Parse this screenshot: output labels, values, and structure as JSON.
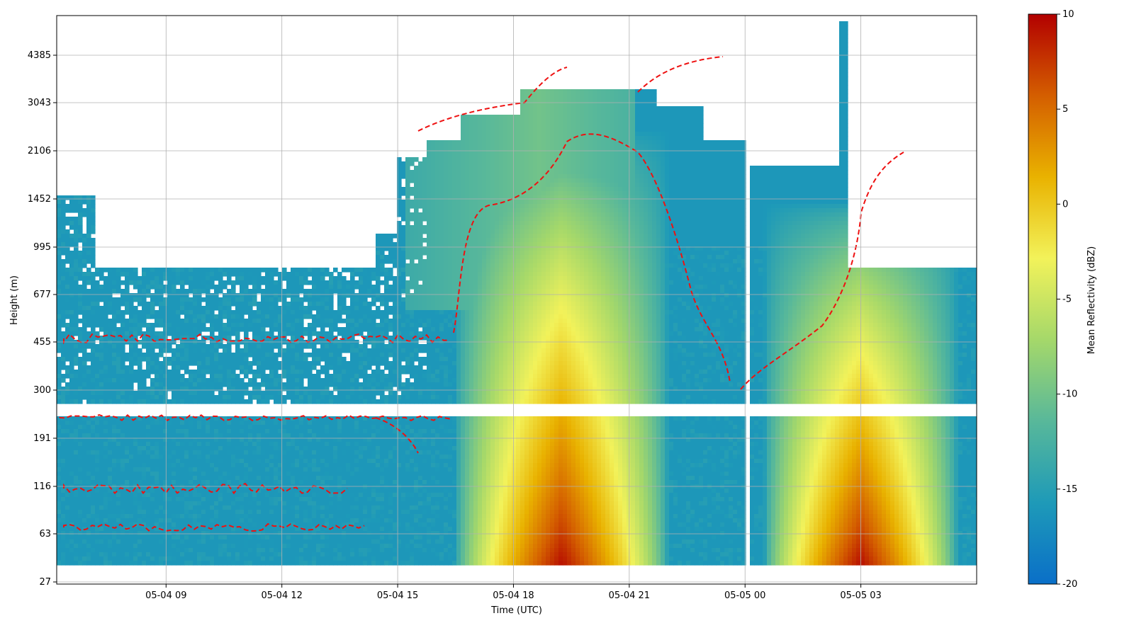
{
  "chart_data": {
    "type": "heatmap",
    "title": "",
    "xlabel": "Time (UTC)",
    "ylabel": "Height (m)",
    "x_range": [
      "2024-05-04 06:10",
      "2024-05-05 06:00"
    ],
    "y_ticks": [
      27,
      63,
      116,
      191,
      300,
      455,
      677,
      995,
      1452,
      2106,
      3043,
      4385
    ],
    "x_ticks": [
      {
        "time": "2024-05-04 09:00",
        "label": "05-04 09"
      },
      {
        "time": "2024-05-04 12:00",
        "label": "05-04 12"
      },
      {
        "time": "2024-05-04 15:00",
        "label": "05-04 15"
      },
      {
        "time": "2024-05-04 18:00",
        "label": "05-04 18"
      },
      {
        "time": "2024-05-04 21:00",
        "label": "05-04 21"
      },
      {
        "time": "2024-05-05 00:00",
        "label": "05-05 00"
      },
      {
        "time": "2024-05-05 03:00",
        "label": "05-05 03"
      }
    ],
    "grid": true,
    "colorbar": {
      "label": "Mean Reflectivity (dBZ)",
      "range": [
        -20,
        10
      ],
      "ticks": [
        10,
        5,
        0,
        -5,
        -10,
        -15,
        -20
      ],
      "colors": [
        "#0a6fc8",
        "#1e9ab8",
        "#58b89a",
        "#a5d86a",
        "#f2f25a",
        "#e9b200",
        "#d45e00",
        "#b20000"
      ]
    },
    "contour": {
      "color": "#ee1111",
      "style": "dashed",
      "level_dBZ": -15
    },
    "echo_features": [
      {
        "start": "2024-05-04 18:00",
        "end": "2024-05-04 20:30",
        "height_top": 700,
        "peak_dBZ": 9
      },
      {
        "start": "2024-05-05 02:00",
        "end": "2024-05-05 04:00",
        "height_top": 400,
        "peak_dBZ": 9
      }
    ]
  }
}
